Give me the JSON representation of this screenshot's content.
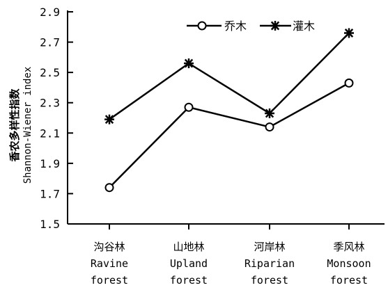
{
  "chart_data": {
    "type": "line",
    "categories_cn": [
      "沟谷林",
      "山地林",
      "河岸林",
      "季风林"
    ],
    "categories_en": [
      "Ravine",
      "Upland",
      "Riparian",
      "Monsoon"
    ],
    "categories_en2": [
      "forest",
      "forest",
      "forest",
      "forest"
    ],
    "ylabel_cn": "香农多样性指数",
    "ylabel_en": "Shannon-Wiener index",
    "ylim": [
      1.5,
      2.9
    ],
    "yticks": [
      "1.5",
      "1.7",
      "1.9",
      "2.1",
      "2.3",
      "2.5",
      "2.7",
      "2.9"
    ],
    "legend_position": "top-right",
    "series": [
      {
        "name": "乔木",
        "marker": "circle",
        "values": [
          1.74,
          2.27,
          2.14,
          2.43
        ]
      },
      {
        "name": "灌木",
        "marker": "asterisk",
        "values": [
          2.19,
          2.56,
          2.23,
          2.76
        ]
      }
    ]
  }
}
